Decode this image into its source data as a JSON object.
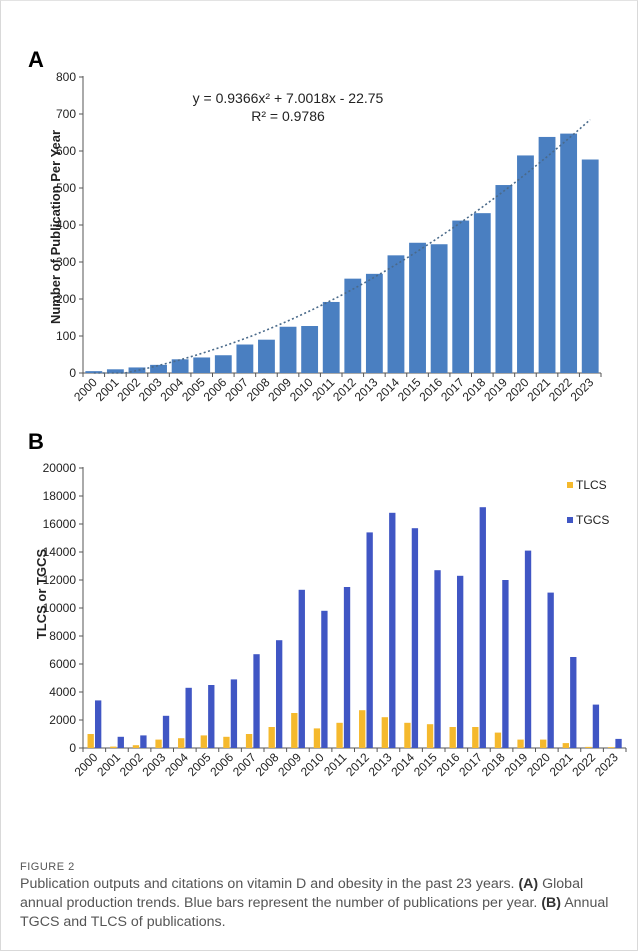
{
  "chart_data": [
    {
      "panel": "A",
      "type": "bar",
      "ylabel": "Number of Publication Per Year",
      "ylim": [
        0,
        800
      ],
      "yticks": [
        0,
        100,
        200,
        300,
        400,
        500,
        600,
        700,
        800
      ],
      "categories": [
        "2000",
        "2001",
        "2002",
        "2003",
        "2004",
        "2005",
        "2006",
        "2007",
        "2008",
        "2009",
        "2010",
        "2011",
        "2012",
        "2013",
        "2014",
        "2015",
        "2016",
        "2017",
        "2018",
        "2019",
        "2020",
        "2021",
        "2022",
        "2023"
      ],
      "values": [
        5,
        10,
        15,
        22,
        37,
        42,
        48,
        77,
        90,
        125,
        127,
        192,
        255,
        268,
        318,
        352,
        348,
        412,
        432,
        508,
        588,
        638,
        647,
        577
      ],
      "bar_color": "#4a7fc1",
      "trendline": {
        "type": "polynomial",
        "color": "#4a6a8a",
        "equation": "y = 0.9366x² + 7.0018x - 22.75",
        "r2": "R² = 0.9786"
      },
      "grid": false
    },
    {
      "panel": "B",
      "type": "bar",
      "ylabel": "TLCS or TGCS",
      "ylim": [
        0,
        20000
      ],
      "yticks": [
        0,
        2000,
        4000,
        6000,
        8000,
        10000,
        12000,
        14000,
        16000,
        18000,
        20000
      ],
      "categories": [
        "2000",
        "2001",
        "2002",
        "2003",
        "2004",
        "2005",
        "2006",
        "2007",
        "2008",
        "2009",
        "2010",
        "2011",
        "2012",
        "2013",
        "2014",
        "2015",
        "2016",
        "2017",
        "2018",
        "2019",
        "2020",
        "2021",
        "2022",
        "2023"
      ],
      "series": [
        {
          "name": "TLCS",
          "color": "#f5b92d",
          "values": [
            1000,
            100,
            200,
            600,
            700,
            900,
            800,
            1000,
            1500,
            2500,
            1400,
            1800,
            2700,
            2200,
            1800,
            1700,
            1500,
            1500,
            1100,
            600,
            600,
            350,
            80,
            60
          ]
        },
        {
          "name": "TGCS",
          "color": "#4056c4",
          "values": [
            3400,
            800,
            900,
            2300,
            4300,
            4500,
            4900,
            6700,
            7700,
            11300,
            9800,
            11500,
            15400,
            16800,
            15700,
            12700,
            12300,
            17200,
            12000,
            14100,
            11100,
            6500,
            3100,
            650
          ]
        }
      ],
      "legend_position": "top-right",
      "grid": false
    }
  ],
  "caption": {
    "label": "FIGURE 2",
    "text_main": "Publication outputs and citations on vitamin D and obesity in the past 23 years.",
    "a_tag": "(A)",
    "a_text": "Global annual production trends. Blue bars represent the number of publications per year.",
    "b_tag": "(B)",
    "b_text": "Annual TGCS and TLCS of publications."
  }
}
